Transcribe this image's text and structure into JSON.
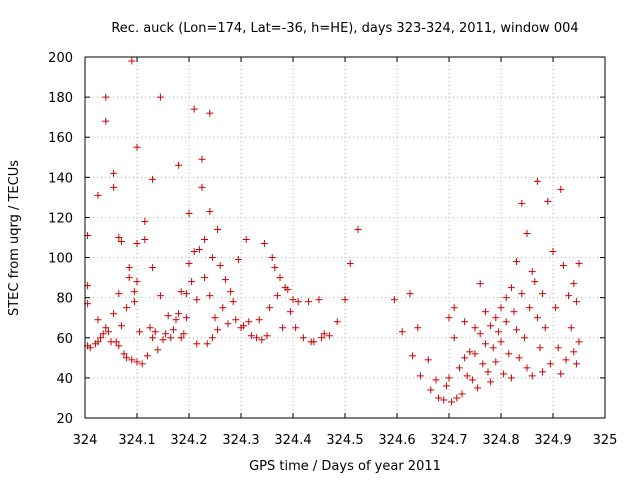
{
  "chart_data": {
    "type": "scatter",
    "title": "Rec. auck (Lon=174, Lat=-36, h=HE), days 323-324, 2011, window 004",
    "xlabel": "GPS time / Days of year 2011",
    "ylabel": "STEC from uqrg / TECUs",
    "xlim": [
      324,
      325
    ],
    "ylim": [
      20,
      200
    ],
    "x_ticks": [
      "324",
      "324.1",
      "324.2",
      "324.3",
      "324.4",
      "324.5",
      "324.6",
      "324.7",
      "324.8",
      "324.9",
      "325"
    ],
    "y_ticks": [
      "20",
      "40",
      "60",
      "80",
      "100",
      "120",
      "140",
      "160",
      "180",
      "200"
    ],
    "grid": true,
    "marker": "+",
    "color": "#cc0000",
    "series": [
      {
        "points": [
          [
            324.005,
            111
          ],
          [
            324.005,
            86
          ],
          [
            324.005,
            77
          ],
          [
            324.005,
            56
          ],
          [
            324.01,
            55
          ],
          [
            324.02,
            57
          ],
          [
            324.025,
            131
          ],
          [
            324.025,
            69
          ],
          [
            324.025,
            58
          ],
          [
            324.03,
            60
          ],
          [
            324.035,
            62
          ],
          [
            324.04,
            180
          ],
          [
            324.04,
            168
          ],
          [
            324.04,
            65
          ],
          [
            324.045,
            63
          ],
          [
            324.05,
            58
          ],
          [
            324.055,
            142
          ],
          [
            324.055,
            135
          ],
          [
            324.055,
            72
          ],
          [
            324.06,
            58
          ],
          [
            324.065,
            56
          ],
          [
            324.065,
            110
          ],
          [
            324.065,
            82
          ],
          [
            324.07,
            66
          ],
          [
            324.07,
            108
          ],
          [
            324.075,
            52
          ],
          [
            324.08,
            50
          ],
          [
            324.08,
            75
          ],
          [
            324.085,
            95
          ],
          [
            324.085,
            90
          ],
          [
            324.09,
            198
          ],
          [
            324.09,
            49
          ],
          [
            324.095,
            83
          ],
          [
            324.095,
            78
          ],
          [
            324.1,
            155
          ],
          [
            324.1,
            88
          ],
          [
            324.1,
            107
          ],
          [
            324.1,
            48
          ],
          [
            324.105,
            63
          ],
          [
            324.11,
            47
          ],
          [
            324.115,
            118
          ],
          [
            324.115,
            109
          ],
          [
            324.12,
            51
          ],
          [
            324.125,
            65
          ],
          [
            324.13,
            139
          ],
          [
            324.13,
            95
          ],
          [
            324.13,
            60
          ],
          [
            324.135,
            63
          ],
          [
            324.14,
            54
          ],
          [
            324.145,
            180
          ],
          [
            324.145,
            81
          ],
          [
            324.15,
            59
          ],
          [
            324.155,
            62
          ],
          [
            324.16,
            71
          ],
          [
            324.165,
            60
          ],
          [
            324.17,
            64
          ],
          [
            324.175,
            69
          ],
          [
            324.18,
            146
          ],
          [
            324.18,
            72
          ],
          [
            324.185,
            83
          ],
          [
            324.185,
            60
          ],
          [
            324.19,
            62
          ],
          [
            324.195,
            82
          ],
          [
            324.195,
            70
          ],
          [
            324.2,
            122
          ],
          [
            324.2,
            97
          ],
          [
            324.205,
            88
          ],
          [
            324.21,
            174
          ],
          [
            324.21,
            103
          ],
          [
            324.215,
            79
          ],
          [
            324.215,
            57
          ],
          [
            324.22,
            104
          ],
          [
            324.225,
            149
          ],
          [
            324.225,
            135
          ],
          [
            324.23,
            109
          ],
          [
            324.23,
            90
          ],
          [
            324.235,
            57
          ],
          [
            324.24,
            172
          ],
          [
            324.24,
            123
          ],
          [
            324.24,
            81
          ],
          [
            324.245,
            60
          ],
          [
            324.245,
            100
          ],
          [
            324.25,
            70
          ],
          [
            324.255,
            114
          ],
          [
            324.255,
            64
          ],
          [
            324.26,
            96
          ],
          [
            324.265,
            75
          ],
          [
            324.27,
            89
          ],
          [
            324.275,
            67
          ],
          [
            324.28,
            83
          ],
          [
            324.285,
            78
          ],
          [
            324.29,
            69
          ],
          [
            324.295,
            99
          ],
          [
            324.3,
            65
          ],
          [
            324.305,
            66
          ],
          [
            324.31,
            109
          ],
          [
            324.315,
            68
          ],
          [
            324.32,
            61
          ],
          [
            324.33,
            60
          ],
          [
            324.335,
            69
          ],
          [
            324.34,
            59
          ],
          [
            324.345,
            107
          ],
          [
            324.35,
            61
          ],
          [
            324.355,
            75
          ],
          [
            324.36,
            100
          ],
          [
            324.365,
            95
          ],
          [
            324.37,
            81
          ],
          [
            324.375,
            90
          ],
          [
            324.38,
            65
          ],
          [
            324.385,
            85
          ],
          [
            324.39,
            84
          ],
          [
            324.395,
            73
          ],
          [
            324.4,
            79
          ],
          [
            324.405,
            65
          ],
          [
            324.41,
            78
          ],
          [
            324.42,
            60
          ],
          [
            324.43,
            78
          ],
          [
            324.435,
            58
          ],
          [
            324.44,
            58
          ],
          [
            324.45,
            79
          ],
          [
            324.455,
            60
          ],
          [
            324.46,
            62
          ],
          [
            324.47,
            61
          ],
          [
            324.485,
            68
          ],
          [
            324.5,
            79
          ],
          [
            324.51,
            97
          ],
          [
            324.525,
            114
          ],
          [
            324.595,
            79
          ],
          [
            324.61,
            63
          ],
          [
            324.625,
            82
          ],
          [
            324.63,
            51
          ],
          [
            324.64,
            65
          ],
          [
            324.645,
            41
          ],
          [
            324.66,
            49
          ],
          [
            324.665,
            34
          ],
          [
            324.675,
            39
          ],
          [
            324.68,
            30
          ],
          [
            324.69,
            29
          ],
          [
            324.695,
            36
          ],
          [
            324.7,
            70
          ],
          [
            324.7,
            40
          ],
          [
            324.705,
            28
          ],
          [
            324.71,
            75
          ],
          [
            324.71,
            60
          ],
          [
            324.715,
            30
          ],
          [
            324.72,
            45
          ],
          [
            324.725,
            32
          ],
          [
            324.73,
            68
          ],
          [
            324.73,
            50
          ],
          [
            324.735,
            41
          ],
          [
            324.74,
            53
          ],
          [
            324.745,
            39
          ],
          [
            324.75,
            65
          ],
          [
            324.75,
            52
          ],
          [
            324.755,
            35
          ],
          [
            324.76,
            87
          ],
          [
            324.76,
            62
          ],
          [
            324.765,
            47
          ],
          [
            324.77,
            73
          ],
          [
            324.77,
            57
          ],
          [
            324.775,
            43
          ],
          [
            324.78,
            66
          ],
          [
            324.78,
            38
          ],
          [
            324.785,
            55
          ],
          [
            324.79,
            70
          ],
          [
            324.79,
            48
          ],
          [
            324.795,
            63
          ],
          [
            324.8,
            75
          ],
          [
            324.8,
            58
          ],
          [
            324.805,
            42
          ],
          [
            324.81,
            80
          ],
          [
            324.81,
            68
          ],
          [
            324.815,
            52
          ],
          [
            324.82,
            85
          ],
          [
            324.82,
            40
          ],
          [
            324.825,
            73
          ],
          [
            324.83,
            98
          ],
          [
            324.83,
            64
          ],
          [
            324.835,
            50
          ],
          [
            324.84,
            127
          ],
          [
            324.84,
            82
          ],
          [
            324.845,
            60
          ],
          [
            324.85,
            112
          ],
          [
            324.85,
            45
          ],
          [
            324.855,
            75
          ],
          [
            324.86,
            93
          ],
          [
            324.86,
            41
          ],
          [
            324.865,
            88
          ],
          [
            324.87,
            138
          ],
          [
            324.87,
            70
          ],
          [
            324.875,
            55
          ],
          [
            324.88,
            82
          ],
          [
            324.88,
            43
          ],
          [
            324.885,
            65
          ],
          [
            324.89,
            128
          ],
          [
            324.895,
            47
          ],
          [
            324.9,
            103
          ],
          [
            324.905,
            75
          ],
          [
            324.91,
            55
          ],
          [
            324.915,
            134
          ],
          [
            324.915,
            42
          ],
          [
            324.92,
            96
          ],
          [
            324.925,
            49
          ],
          [
            324.93,
            81
          ],
          [
            324.935,
            65
          ],
          [
            324.94,
            87
          ],
          [
            324.94,
            53
          ],
          [
            324.945,
            78
          ],
          [
            324.945,
            47
          ],
          [
            324.95,
            97
          ],
          [
            324.95,
            58
          ]
        ]
      }
    ]
  }
}
